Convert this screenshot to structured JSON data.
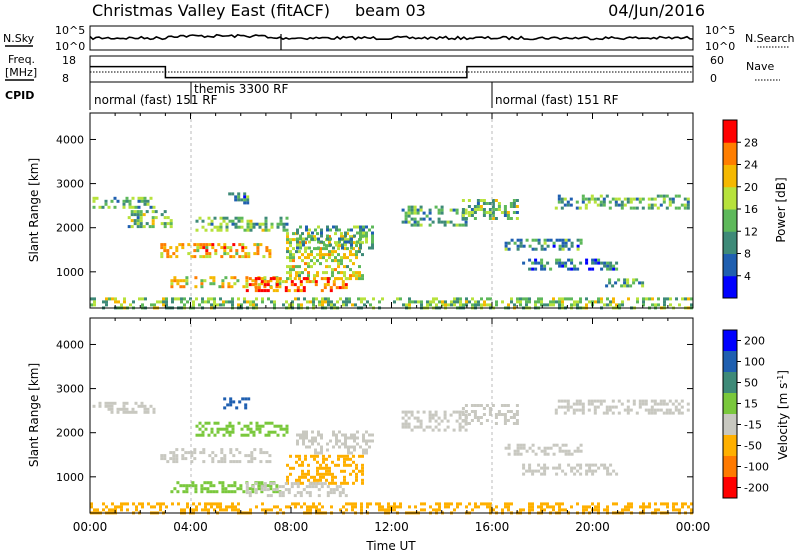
{
  "header": {
    "title": "Christmas Valley East (fitACF)",
    "beam": "beam 03",
    "date": "04/Jun/2016"
  },
  "top_panels": {
    "nsky_label": "N.Sky",
    "nsearch_label": "N.Search",
    "noise_ticks_left": [
      "10^5",
      "10^0"
    ],
    "noise_ticks_right": [
      "10^5",
      "10^0"
    ],
    "freq_label_1": "Freq.",
    "freq_label_2": "[MHz]",
    "freq_ticks": [
      "18",
      "8"
    ],
    "nave_label": "Nave",
    "nave_ticks": [
      "60",
      "0"
    ],
    "cpid_label": "CPID",
    "cpid_segments": [
      {
        "label": "normal (fast) 151 RF",
        "start_hour": 0,
        "end_hour": 16
      },
      {
        "label": "themis 3300 RF",
        "start_hour": 3.3,
        "end_hour": 4
      },
      {
        "label": "normal (fast) 151 RF",
        "start_hour": 16,
        "end_hour": 24
      }
    ],
    "freq_steps": [
      {
        "start_hour": 0,
        "end_hour": 3,
        "value": 15
      },
      {
        "start_hour": 3,
        "end_hour": 15,
        "value": 10
      },
      {
        "start_hour": 15,
        "end_hour": 24,
        "value": 15
      }
    ]
  },
  "chart_data": [
    {
      "type": "heatmap",
      "name": "power",
      "ylabel": "Slant Range [km]",
      "yticks": [
        1000,
        2000,
        3000,
        4000
      ],
      "ylim": [
        180,
        4600
      ],
      "xlim": [
        0,
        24
      ],
      "colorbar_label": "Power [dB]",
      "colorbar_ticks": [
        "4",
        "8",
        "12",
        "16",
        "20",
        "24",
        "28"
      ],
      "colorbar_range": [
        0,
        30
      ],
      "colors": [
        "#0000ff",
        "#1f5fb0",
        "#3e8a78",
        "#5db85a",
        "#b7e23c",
        "#f5b800",
        "#ff7e00",
        "#ff0000"
      ],
      "bands": [
        {
          "x0": 0.1,
          "x1": 2.6,
          "y0": 2450,
          "y1": 2700,
          "p": 12
        },
        {
          "x0": 1.5,
          "x1": 3.2,
          "y0": 2050,
          "y1": 2400,
          "p": 14
        },
        {
          "x0": 2.8,
          "x1": 7.2,
          "y0": 1350,
          "y1": 1650,
          "p": 22
        },
        {
          "x0": 3.2,
          "x1": 7.6,
          "y0": 650,
          "y1": 900,
          "p": 20
        },
        {
          "x0": 4.2,
          "x1": 7.8,
          "y0": 1950,
          "y1": 2250,
          "p": 14
        },
        {
          "x0": 5.5,
          "x1": 6.3,
          "y0": 2550,
          "y1": 2800,
          "p": 10
        },
        {
          "x0": 7.8,
          "x1": 10.8,
          "y0": 850,
          "y1": 1900,
          "p": 18
        },
        {
          "x0": 6.2,
          "x1": 10.2,
          "y0": 600,
          "y1": 880,
          "p": 26
        },
        {
          "x0": 8.2,
          "x1": 11.2,
          "y0": 1550,
          "y1": 2050,
          "p": 11
        },
        {
          "x0": 12.4,
          "x1": 15,
          "y0": 2050,
          "y1": 2500,
          "p": 12
        },
        {
          "x0": 14.8,
          "x1": 17,
          "y0": 2200,
          "y1": 2650,
          "p": 14
        },
        {
          "x0": 16.5,
          "x1": 19.5,
          "y0": 1500,
          "y1": 1750,
          "p": 10
        },
        {
          "x0": 17.2,
          "x1": 21,
          "y0": 1050,
          "y1": 1300,
          "p": 9
        },
        {
          "x0": 20.5,
          "x1": 22,
          "y0": 650,
          "y1": 850,
          "p": 14
        },
        {
          "x0": 18.5,
          "x1": 23.8,
          "y0": 2450,
          "y1": 2750,
          "p": 12
        },
        {
          "x0": 0,
          "x1": 24,
          "y0": 180,
          "y1": 420,
          "p": 15
        }
      ]
    },
    {
      "type": "heatmap",
      "name": "velocity",
      "ylabel": "Slant Range [km]",
      "xlabel": "Time UT",
      "xticks": [
        "00:00",
        "04:00",
        "08:00",
        "12:00",
        "16:00",
        "20:00",
        "00:00"
      ],
      "yticks": [
        1000,
        2000,
        3000,
        4000
      ],
      "ylim": [
        180,
        4600
      ],
      "xlim": [
        0,
        24
      ],
      "colorbar_label": "Velocity [m s^-1]",
      "colorbar_ticks": [
        "200",
        "100",
        "50",
        "15",
        "-15",
        "-50",
        "-100",
        "-200"
      ],
      "colors": [
        "#0000ff",
        "#1f5fb0",
        "#3e8a78",
        "#7ac83c",
        "#c8c8c0",
        "#ffb000",
        "#ff7a00",
        "#ff0000"
      ],
      "bands": [
        {
          "x0": 0.1,
          "x1": 2.6,
          "y0": 2450,
          "y1": 2700,
          "v": 0
        },
        {
          "x0": 5.3,
          "x1": 6.3,
          "y0": 2550,
          "y1": 2800,
          "v": 150
        },
        {
          "x0": 2.8,
          "x1": 7.2,
          "y0": 1350,
          "y1": 1650,
          "v": 0
        },
        {
          "x0": 3.2,
          "x1": 7.6,
          "y0": 650,
          "y1": 900,
          "v": 30
        },
        {
          "x0": 4.2,
          "x1": 7.8,
          "y0": 1950,
          "y1": 2250,
          "v": 25
        },
        {
          "x0": 7.8,
          "x1": 10.8,
          "y0": 850,
          "y1": 1500,
          "v": -40
        },
        {
          "x0": 6.2,
          "x1": 10.2,
          "y0": 600,
          "y1": 880,
          "v": 0
        },
        {
          "x0": 8.2,
          "x1": 11.2,
          "y0": 1550,
          "y1": 2050,
          "v": 0
        },
        {
          "x0": 12.4,
          "x1": 15,
          "y0": 2050,
          "y1": 2500,
          "v": 0
        },
        {
          "x0": 14.8,
          "x1": 17,
          "y0": 2200,
          "y1": 2650,
          "v": 0
        },
        {
          "x0": 16.5,
          "x1": 19.5,
          "y0": 1500,
          "y1": 1750,
          "v": 0
        },
        {
          "x0": 17.2,
          "x1": 21,
          "y0": 1050,
          "y1": 1300,
          "v": 0
        },
        {
          "x0": 18.5,
          "x1": 23.8,
          "y0": 2450,
          "y1": 2750,
          "v": 0
        },
        {
          "x0": 0,
          "x1": 24,
          "y0": 180,
          "y1": 420,
          "v": -30
        }
      ]
    }
  ]
}
